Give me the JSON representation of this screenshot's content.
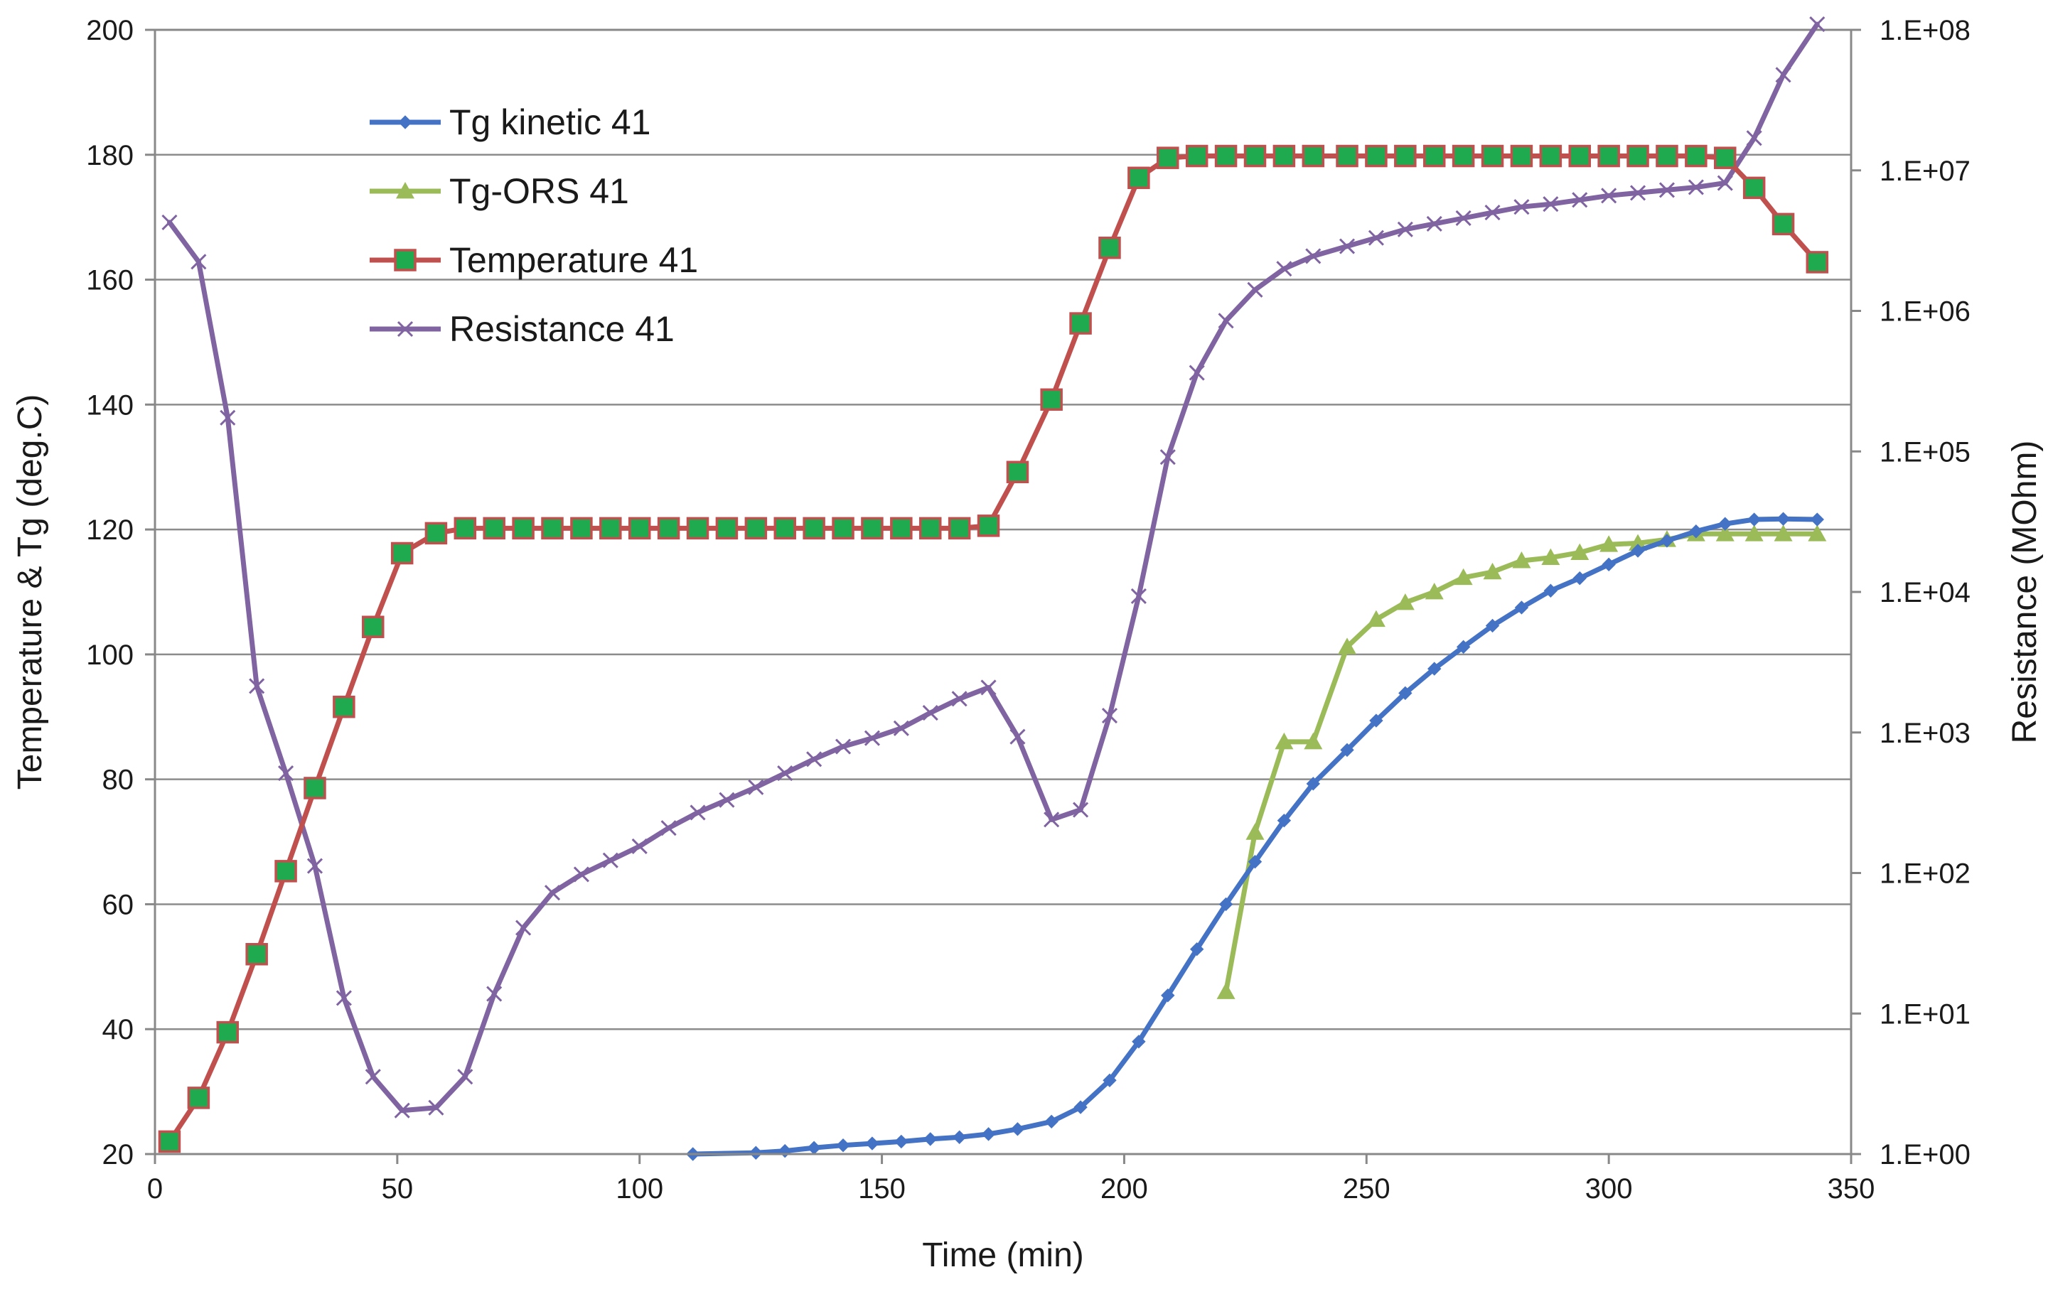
{
  "chart_data": {
    "type": "line",
    "title": "",
    "xlabel": "Time (min)",
    "ylabel": "Temperature & Tg (deg.C)",
    "y2label": "Resistance (MOhm)",
    "xlim": [
      0,
      350
    ],
    "ylim": [
      20,
      200
    ],
    "y2lim_log10": [
      0,
      8
    ],
    "x_ticks": [
      "0",
      "50",
      "100",
      "150",
      "200",
      "250",
      "300",
      "350"
    ],
    "x_tick_values": [
      0,
      50,
      100,
      150,
      200,
      250,
      300,
      350
    ],
    "y_ticks": [
      "20",
      "40",
      "60",
      "80",
      "100",
      "120",
      "140",
      "160",
      "180",
      "200"
    ],
    "y_tick_values": [
      20,
      40,
      60,
      80,
      100,
      120,
      140,
      160,
      180,
      200
    ],
    "y2_ticks": [
      "1.E+00",
      "1.E+01",
      "1.E+02",
      "1.E+03",
      "1.E+04",
      "1.E+05",
      "1.E+06",
      "1.E+07",
      "1.E+08"
    ],
    "y2_tick_exponents": [
      0,
      1,
      2,
      3,
      4,
      5,
      6,
      7,
      8
    ],
    "grid": true,
    "legend_position": "top-left",
    "series": [
      {
        "name": "Tg kinetic 41",
        "axis": "left",
        "color": "#4472C4",
        "marker": "diamond",
        "x": [
          111,
          124,
          130,
          136,
          142,
          148,
          154,
          160,
          166,
          172,
          178,
          185,
          191,
          197,
          203,
          209,
          215,
          221,
          227,
          233,
          239,
          246,
          252,
          258,
          264,
          270,
          276,
          282,
          288,
          294,
          300,
          306,
          312,
          318,
          324,
          330,
          336,
          343
        ],
        "y": [
          20,
          20.2,
          20.5,
          21,
          21.4,
          21.7,
          22,
          22.4,
          22.7,
          23.2,
          24,
          25.2,
          27.5,
          31.8,
          38,
          45.4,
          52.8,
          60,
          66.8,
          73.4,
          79.3,
          84.7,
          89.4,
          93.8,
          97.7,
          101.2,
          104.6,
          107.5,
          110.2,
          112.2,
          114.4,
          116.6,
          118.2,
          119.7,
          120.9,
          121.6,
          121.7,
          121.6
        ]
      },
      {
        "name": "Tg-ORS 41",
        "axis": "left",
        "color": "#9BBB59",
        "marker": "triangle",
        "x": [
          221,
          227,
          233,
          239,
          246,
          252,
          258,
          264,
          270,
          276,
          282,
          288,
          294,
          300,
          306,
          312,
          318,
          324,
          330,
          336,
          343
        ],
        "y": [
          46,
          71.5,
          86,
          86,
          101.2,
          105.6,
          108.3,
          110,
          112.3,
          113.2,
          115,
          115.5,
          116.3,
          117.6,
          117.8,
          118.4,
          119.3,
          119.3,
          119.3,
          119.3,
          119.3
        ]
      },
      {
        "name": "Temperature 41",
        "axis": "left",
        "color": "#C0504D",
        "marker": "square",
        "x": [
          3,
          9,
          15,
          21,
          27,
          33,
          39,
          45,
          51,
          58,
          64,
          70,
          76,
          82,
          88,
          94,
          100,
          106,
          112,
          118,
          124,
          130,
          136,
          142,
          148,
          154,
          160,
          166,
          172,
          178,
          185,
          191,
          197,
          203,
          209,
          215,
          221,
          227,
          233,
          239,
          246,
          252,
          258,
          264,
          270,
          276,
          282,
          288,
          294,
          300,
          306,
          312,
          318,
          324,
          330,
          336,
          343
        ],
        "y": [
          22,
          29,
          39.5,
          52,
          65.3,
          78.6,
          91.6,
          104.4,
          116.2,
          119.4,
          120.2,
          120.2,
          120.2,
          120.2,
          120.2,
          120.2,
          120.2,
          120.2,
          120.2,
          120.2,
          120.2,
          120.2,
          120.2,
          120.2,
          120.2,
          120.2,
          120.2,
          120.2,
          120.6,
          129.2,
          140.8,
          153,
          165.1,
          176.3,
          179.5,
          179.8,
          179.8,
          179.8,
          179.8,
          179.8,
          179.8,
          179.8,
          179.8,
          179.8,
          179.8,
          179.8,
          179.8,
          179.8,
          179.8,
          179.8,
          179.8,
          179.8,
          179.8,
          179.5,
          174.7,
          168.9,
          162.8
        ]
      },
      {
        "name": "Resistance 41",
        "axis": "right",
        "color": "#8064A2",
        "marker": "x",
        "x": [
          3,
          9,
          15,
          21,
          27,
          33,
          39,
          45,
          51,
          58,
          64,
          70,
          76,
          82,
          88,
          94,
          100,
          106,
          112,
          118,
          124,
          130,
          136,
          142,
          148,
          154,
          160,
          166,
          172,
          178,
          185,
          191,
          197,
          203,
          209,
          215,
          221,
          227,
          233,
          239,
          246,
          252,
          258,
          264,
          270,
          276,
          282,
          288,
          294,
          300,
          306,
          312,
          318,
          324,
          330,
          336,
          343
        ],
        "y_log10": [
          6.63,
          6.35,
          5.24,
          3.33,
          2.71,
          2.05,
          1.11,
          0.55,
          0.31,
          0.33,
          0.55,
          1.14,
          1.61,
          1.86,
          1.99,
          2.09,
          2.19,
          2.32,
          2.43,
          2.52,
          2.61,
          2.71,
          2.81,
          2.9,
          2.96,
          3.03,
          3.14,
          3.24,
          3.32,
          2.97,
          2.38,
          2.45,
          3.12,
          3.97,
          4.96,
          5.56,
          5.93,
          6.15,
          6.3,
          6.39,
          6.46,
          6.52,
          6.58,
          6.62,
          6.66,
          6.7,
          6.74,
          6.76,
          6.79,
          6.82,
          6.84,
          6.86,
          6.88,
          6.91,
          7.23,
          7.68,
          8.04
        ]
      }
    ]
  }
}
